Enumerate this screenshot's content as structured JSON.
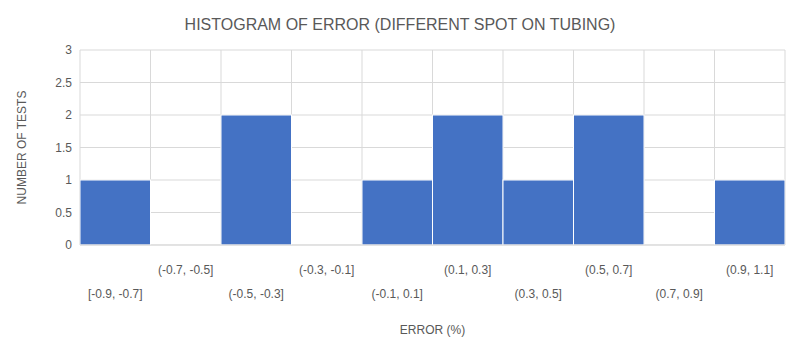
{
  "chart_data": {
    "type": "histogram",
    "title": "HISTOGRAM OF ERROR (DIFFERENT SPOT ON TUBING)",
    "x_label": "ERROR (%)",
    "y_label": "NUMBER OF TESTS",
    "categories": [
      "[-0.9, -0.7]",
      "(-0.7, -0.5]",
      "(-0.5, -0.3]",
      "(-0.3, -0.1]",
      "(-0.1, 0.1]",
      "(0.1, 0.3]",
      "(0.3, 0.5]",
      "(0.5, 0.7]",
      "(0.7, 0.9]",
      "(0.9, 1.1]"
    ],
    "bins": [
      -0.9,
      -0.7,
      -0.5,
      -0.3,
      -0.1,
      0.1,
      0.3,
      0.5,
      0.7,
      0.9,
      1.1
    ],
    "values": [
      1,
      0,
      2,
      0,
      1,
      2,
      1,
      2,
      0,
      1
    ],
    "color": "#4472c4",
    "ylim": [
      0,
      3
    ],
    "yticks": [
      0,
      0.5,
      1,
      1.5,
      2,
      2.5,
      3
    ],
    "grid": true
  }
}
